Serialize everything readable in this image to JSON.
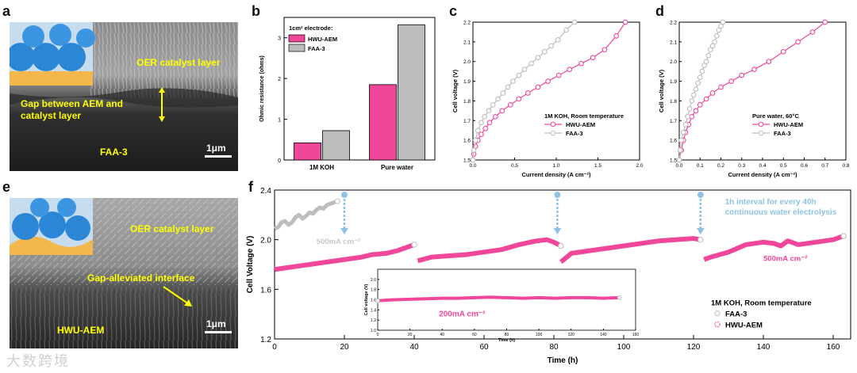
{
  "panels": {
    "a": {
      "letter": "a",
      "labels": {
        "oer": "OER catalyst layer",
        "gap": "Gap between AEM and\ncatalyst layer",
        "membrane": "FAA-3"
      },
      "scale_text": "1μm"
    },
    "e": {
      "letter": "e",
      "labels": {
        "oer": "OER catalyst layer",
        "interface": "Gap-alleviated interface",
        "membrane": "HWU-AEM"
      },
      "scale_text": "1μm"
    }
  },
  "colors": {
    "hwu": "#f0479a",
    "faa": "#bdbdbd",
    "annot_yellow": "#ffff00",
    "arrow_blue": "#8fc3e3"
  },
  "watermark": "大数跨境",
  "chart_data": [
    {
      "panel": "b",
      "type": "bar",
      "ylabel": "Ohmic resistance (ohms)",
      "categories": [
        "1M KOH",
        "Pure water"
      ],
      "ylim": [
        0,
        3.5
      ],
      "yticks": [
        0,
        1,
        2,
        3
      ],
      "legend_title": "1cm² electrode:",
      "series": [
        {
          "name": "HWU-AEM",
          "values": [
            0.42,
            1.85
          ]
        },
        {
          "name": "FAA-3",
          "values": [
            0.72,
            3.32
          ]
        }
      ]
    },
    {
      "panel": "c",
      "type": "line",
      "xlabel": "Current density (A cm⁻²)",
      "ylabel": "Cell voltage (V)",
      "xlim": [
        0,
        2.0
      ],
      "ylim": [
        1.5,
        2.2
      ],
      "xticks": [
        "0.0",
        "0.5",
        "1.0",
        "1.5",
        "2.0"
      ],
      "yticks": [
        "1.5",
        "1.6",
        "1.7",
        "1.8",
        "1.9",
        "2.0",
        "2.1",
        "2.2"
      ],
      "legend_title": "1M KOH, Room temperature",
      "series": [
        {
          "name": "HWU-AEM",
          "x": [
            0.0,
            0.01,
            0.03,
            0.06,
            0.1,
            0.15,
            0.2,
            0.27,
            0.35,
            0.45,
            0.55,
            0.66,
            0.78,
            0.9,
            1.03,
            1.16,
            1.3,
            1.44,
            1.58,
            1.72,
            1.83
          ],
          "y": [
            1.5,
            1.53,
            1.57,
            1.6,
            1.63,
            1.66,
            1.69,
            1.72,
            1.75,
            1.78,
            1.81,
            1.84,
            1.87,
            1.9,
            1.93,
            1.96,
            1.99,
            2.02,
            2.06,
            2.13,
            2.2
          ]
        },
        {
          "name": "FAA-3",
          "x": [
            0.0,
            0.01,
            0.03,
            0.06,
            0.1,
            0.14,
            0.19,
            0.24,
            0.3,
            0.36,
            0.42,
            0.48,
            0.55,
            0.62,
            0.7,
            0.78,
            0.86,
            0.94,
            1.02,
            1.12,
            1.22
          ],
          "y": [
            1.5,
            1.55,
            1.6,
            1.65,
            1.69,
            1.72,
            1.75,
            1.78,
            1.81,
            1.84,
            1.87,
            1.9,
            1.93,
            1.96,
            1.99,
            2.02,
            2.05,
            2.08,
            2.11,
            2.16,
            2.2
          ]
        }
      ]
    },
    {
      "panel": "d",
      "type": "line",
      "xlabel": "Current density (A cm⁻²)",
      "ylabel": "Cell voltage (V)",
      "xlim": [
        0,
        0.8
      ],
      "ylim": [
        1.5,
        2.2
      ],
      "xticks": [
        "0.0",
        "0.1",
        "0.2",
        "0.3",
        "0.4",
        "0.5",
        "0.6",
        "0.7",
        "0.8"
      ],
      "yticks": [
        "1.5",
        "1.6",
        "1.7",
        "1.8",
        "1.9",
        "2.0",
        "2.1",
        "2.2"
      ],
      "legend_title": "Pure water, 60°C",
      "series": [
        {
          "name": "HWU-AEM",
          "x": [
            0.0,
            0.01,
            0.02,
            0.03,
            0.045,
            0.06,
            0.08,
            0.1,
            0.13,
            0.16,
            0.2,
            0.25,
            0.3,
            0.36,
            0.43,
            0.5,
            0.57,
            0.64,
            0.7
          ],
          "y": [
            1.5,
            1.55,
            1.6,
            1.64,
            1.68,
            1.72,
            1.75,
            1.78,
            1.81,
            1.84,
            1.87,
            1.9,
            1.93,
            1.96,
            2.0,
            2.05,
            2.1,
            2.15,
            2.2
          ]
        },
        {
          "name": "FAA-3",
          "x": [
            0.0,
            0.005,
            0.01,
            0.02,
            0.03,
            0.04,
            0.05,
            0.06,
            0.07,
            0.08,
            0.09,
            0.1,
            0.11,
            0.12,
            0.13,
            0.14,
            0.15,
            0.16,
            0.17,
            0.18,
            0.19,
            0.2,
            0.21
          ],
          "y": [
            1.5,
            1.55,
            1.6,
            1.64,
            1.68,
            1.72,
            1.76,
            1.8,
            1.83,
            1.86,
            1.89,
            1.92,
            1.95,
            1.98,
            2.0,
            2.03,
            2.06,
            2.08,
            2.1,
            2.13,
            2.16,
            2.18,
            2.2
          ]
        }
      ]
    },
    {
      "panel": "f",
      "type": "line",
      "xlabel": "Time (h)",
      "ylabel": "Cell Voltage (V)",
      "xlim": [
        0,
        165
      ],
      "ylim": [
        1.2,
        2.4
      ],
      "xticks": [
        "0",
        "20",
        "40",
        "60",
        "80",
        "100",
        "120",
        "140",
        "160"
      ],
      "yticks": [
        "1.2",
        "1.6",
        "2.0",
        "2.4"
      ],
      "legend_title": "1M KOH, Room temperature",
      "annotations": {
        "faa_current": "500mA cm⁻²",
        "hwu_current": "500mA cm⁻²",
        "interval_note": "1h interval for every 40h\ncontinuous water electrolysis"
      },
      "interruptions_h": [
        20,
        81,
        122
      ],
      "series": [
        {
          "name": "FAA-3",
          "x": [
            0,
            1,
            2,
            3,
            4,
            5,
            6,
            7,
            8,
            9,
            10,
            11,
            12,
            13,
            14,
            15,
            16,
            17,
            18
          ],
          "y": [
            2.09,
            2.1,
            2.14,
            2.15,
            2.12,
            2.14,
            2.18,
            2.2,
            2.17,
            2.19,
            2.22,
            2.21,
            2.24,
            2.26,
            2.25,
            2.28,
            2.29,
            2.3,
            2.31
          ]
        },
        {
          "name": "HWU-AEM",
          "segments": [
            {
              "x": [
                0,
                5,
                10,
                15,
                20,
                25,
                28,
                32,
                35,
                37,
                40
              ],
              "y": [
                1.76,
                1.78,
                1.8,
                1.82,
                1.84,
                1.86,
                1.88,
                1.89,
                1.91,
                1.93,
                1.96
              ]
            },
            {
              "x": [
                41,
                45,
                50,
                55,
                60,
                65,
                70,
                75,
                78,
                80,
                82
              ],
              "y": [
                1.83,
                1.86,
                1.87,
                1.88,
                1.9,
                1.92,
                1.96,
                1.99,
                2.0,
                1.98,
                1.95
              ]
            },
            {
              "x": [
                82,
                85,
                90,
                95,
                100,
                105,
                110,
                115,
                120,
                122
              ],
              "y": [
                1.82,
                1.89,
                1.91,
                1.93,
                1.95,
                1.97,
                1.99,
                2.0,
                2.01,
                2.0
              ]
            },
            {
              "x": [
                123,
                125,
                130,
                135,
                140,
                143,
                145,
                147,
                150,
                155,
                160,
                163
              ],
              "y": [
                1.84,
                1.86,
                1.9,
                1.96,
                1.98,
                1.97,
                1.95,
                1.99,
                1.96,
                1.98,
                2.0,
                2.03
              ]
            }
          ]
        }
      ],
      "inset": {
        "type": "line",
        "xlabel": "Time (h)",
        "ylabel": "Cell voltage (V)",
        "xlim": [
          0,
          160
        ],
        "ylim": [
          1.0,
          2.2
        ],
        "xticks": [
          "0",
          "20",
          "40",
          "60",
          "80",
          "100",
          "120",
          "140",
          "160"
        ],
        "yticks": [
          "1.0",
          "1.2",
          "1.4",
          "1.6",
          "1.8",
          "2.0"
        ],
        "annotation": "200mA cm⁻²",
        "series": [
          {
            "name": "HWU-AEM",
            "x": [
              0,
              10,
              20,
              30,
              40,
              50,
              60,
              70,
              80,
              90,
              100,
              110,
              120,
              130,
              140,
              150
            ],
            "y": [
              1.58,
              1.6,
              1.61,
              1.62,
              1.63,
              1.63,
              1.64,
              1.65,
              1.64,
              1.63,
              1.64,
              1.63,
              1.64,
              1.64,
              1.63,
              1.64
            ]
          }
        ]
      }
    }
  ]
}
